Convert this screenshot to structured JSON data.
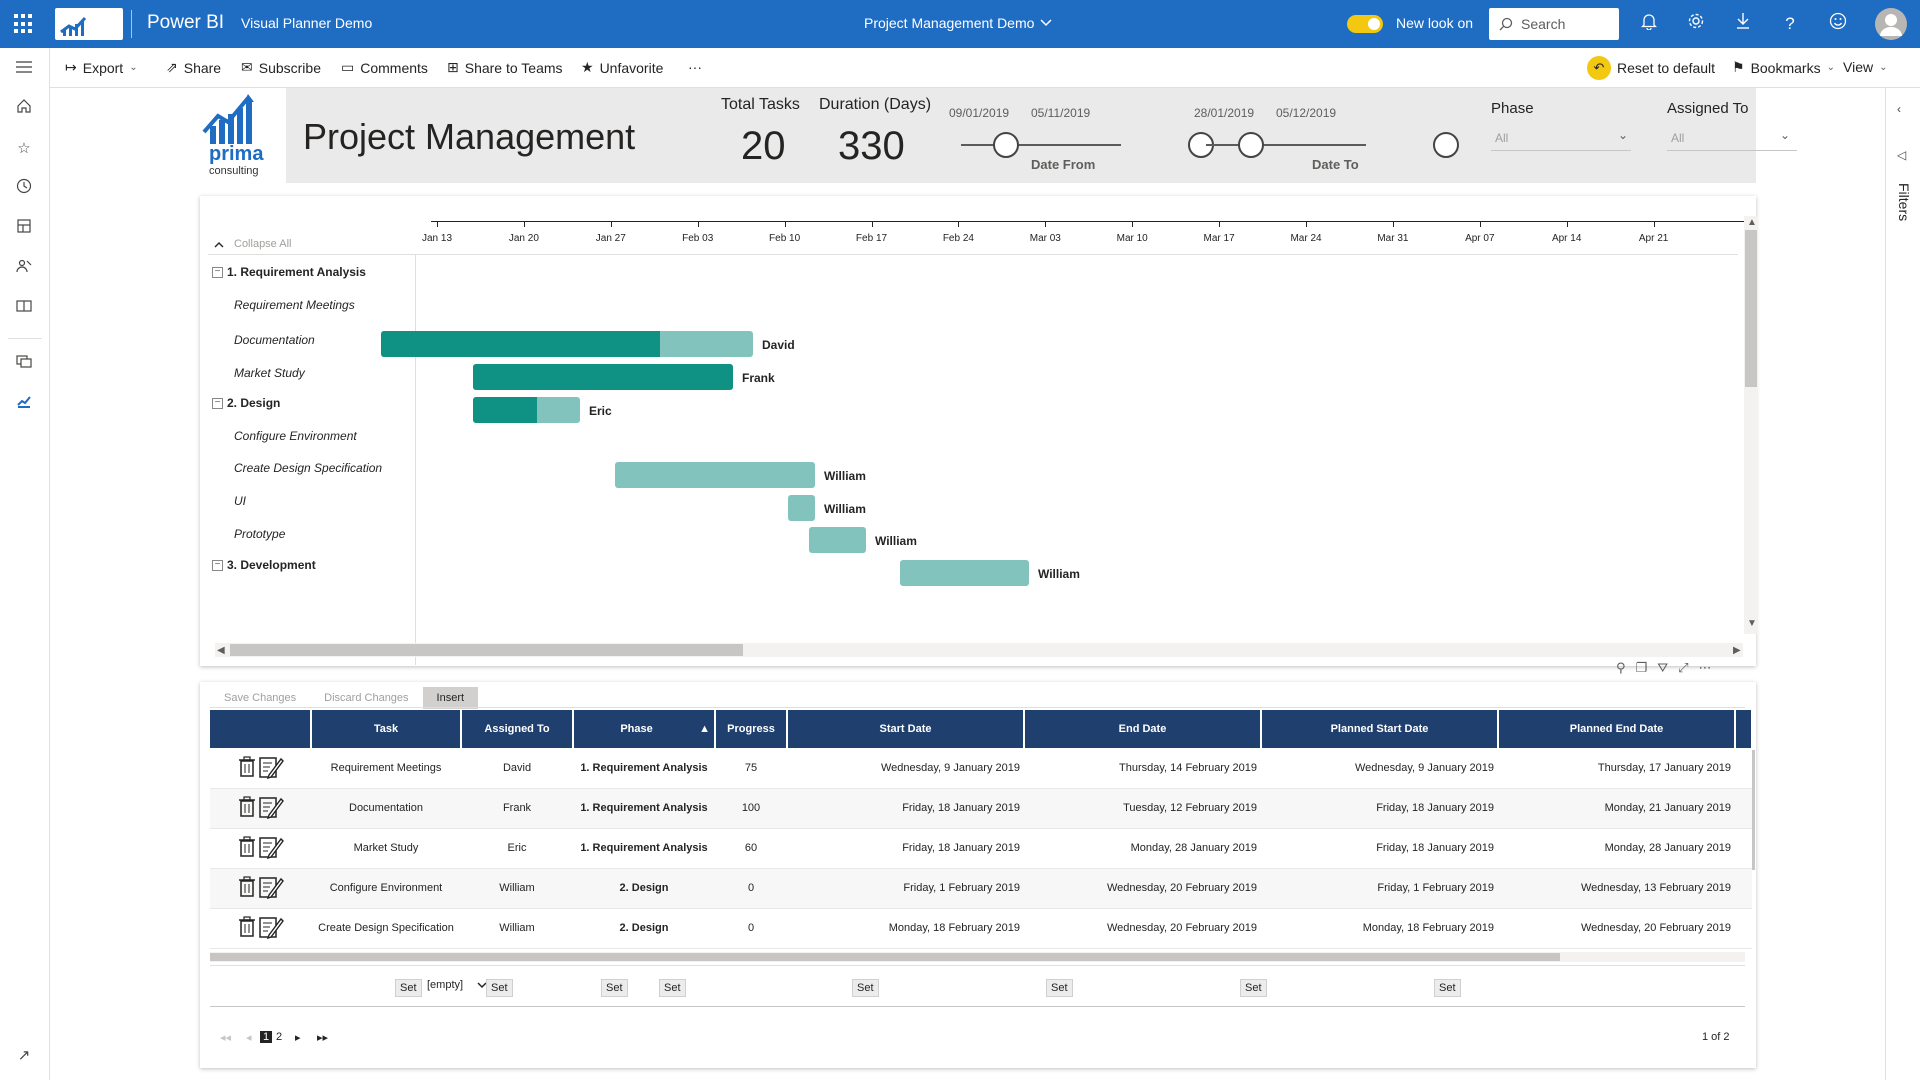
{
  "topbar": {
    "app_name": "Power BI",
    "workspace": "Visual Planner Demo",
    "report_title": "Project Management Demo",
    "new_look": "New look on",
    "search_placeholder": "Search"
  },
  "actionbar": {
    "export": "Export",
    "share": "Share",
    "subscribe": "Subscribe",
    "comments": "Comments",
    "share_teams": "Share to Teams",
    "unfavorite": "Unfavorite",
    "more": "···",
    "reset": "Reset to default",
    "bookmarks": "Bookmarks",
    "view": "View"
  },
  "filters_pane": {
    "label": "Filters"
  },
  "header": {
    "logo_text": "prima",
    "logo_sub": "consulting",
    "title": "Project Management",
    "total_tasks_label": "Total Tasks",
    "total_tasks_value": "20",
    "duration_label": "Duration (Days)",
    "duration_value": "330",
    "date_from": {
      "start": "09/01/2019",
      "end": "05/11/2019",
      "label": "Date From"
    },
    "date_to": {
      "start": "28/01/2019",
      "end": "05/12/2019",
      "label": "Date To"
    },
    "phase": {
      "label": "Phase",
      "value": "All"
    },
    "assigned": {
      "label": "Assigned To",
      "value": "All"
    }
  },
  "gantt": {
    "collapse_all": "Collapse All",
    "ticks": [
      "Jan 13",
      "Jan 20",
      "Jan 27",
      "Feb 03",
      "Feb 10",
      "Feb 17",
      "Feb 24",
      "Mar 03",
      "Mar 10",
      "Mar 17",
      "Mar 24",
      "Mar 31",
      "Apr 07",
      "Apr 14",
      "Apr 21"
    ],
    "phases": [
      {
        "label": "1. Requirement Analysis",
        "symbol": "−"
      },
      {
        "label": "2. Design",
        "symbol": "−"
      },
      {
        "label": "3. Development",
        "symbol": "−"
      }
    ],
    "tasks": [
      {
        "label": "Requirement Meetings",
        "owner": "David",
        "progress": 75
      },
      {
        "label": "Documentation",
        "owner": "Frank",
        "progress": 100
      },
      {
        "label": "Market Study",
        "owner": "Eric",
        "progress": 60
      },
      {
        "label": "Configure Environment",
        "owner": "William",
        "progress": 0
      },
      {
        "label": "Create Design Specification",
        "owner": "William",
        "progress": 0
      },
      {
        "label": "UI",
        "owner": "William",
        "progress": 0
      },
      {
        "label": "Prototype",
        "owner": "William",
        "progress": 0
      }
    ]
  },
  "grid": {
    "toolbar": {
      "save": "Save Changes",
      "discard": "Discard Changes",
      "insert": "Insert"
    },
    "columns": [
      "Task",
      "Assigned To",
      "Phase",
      "Progress",
      "Start Date",
      "End Date",
      "Planned Start Date",
      "Planned End Date"
    ],
    "rows": [
      [
        "Requirement Meetings",
        "David",
        "1. Requirement Analysis",
        "75",
        "Wednesday, 9 January 2019",
        "Thursday, 14 February 2019",
        "Wednesday, 9 January 2019",
        "Thursday, 17 January 2019"
      ],
      [
        "Documentation",
        "Frank",
        "1. Requirement Analysis",
        "100",
        "Friday, 18 January 2019",
        "Tuesday, 12 February 2019",
        "Friday, 18 January 2019",
        "Monday, 21 January 2019"
      ],
      [
        "Market Study",
        "Eric",
        "1. Requirement Analysis",
        "60",
        "Friday, 18 January 2019",
        "Monday, 28 January 2019",
        "Friday, 18 January 2019",
        "Monday, 28 January 2019"
      ],
      [
        "Configure Environment",
        "William",
        "2. Design",
        "0",
        "Friday, 1 February 2019",
        "Wednesday, 20 February 2019",
        "Friday, 1 February 2019",
        "Wednesday, 13 February 2019"
      ],
      [
        "Create Design Specification",
        "William",
        "2. Design",
        "0",
        "Monday, 18 February 2019",
        "Wednesday, 20 February 2019",
        "Monday, 18 February 2019",
        "Wednesday, 20 February 2019"
      ]
    ],
    "set_label": "Set",
    "empty_option": "[empty]",
    "pager": {
      "first": "◂◂",
      "prev": "◂",
      "page1": "1",
      "page2": "2",
      "next": "▸",
      "last": "▸▸",
      "status": "1 of 2"
    }
  },
  "colors": {
    "accent": "#1f6cc3",
    "bar_done": "#0f9283",
    "bar_planned": "#82c4bd",
    "table_header": "#1f3f6e",
    "toggle": "#f2c811"
  }
}
